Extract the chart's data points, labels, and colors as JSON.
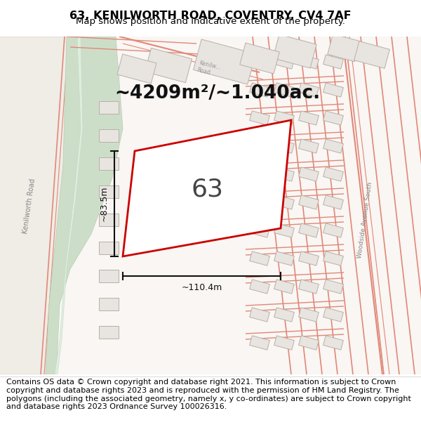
{
  "title_line1": "63, KENILWORTH ROAD, COVENTRY, CV4 7AF",
  "title_line2": "Map shows position and indicative extent of the property.",
  "footer_text": "Contains OS data © Crown copyright and database right 2021. This information is subject to Crown copyright and database rights 2023 and is reproduced with the permission of HM Land Registry. The polygons (including the associated geometry, namely x, y co-ordinates) are subject to Crown copyright and database rights 2023 Ordnance Survey 100026316.",
  "area_text": "~4209m²/~1.040ac.",
  "label_63": "63",
  "dim_width": "~110.4m",
  "dim_height": "~83.5m",
  "map_bg": "#f8f5f2",
  "green_color": "#cddec8",
  "green_edge": "#b8ccb2",
  "road_pink": "#f5c0b8",
  "road_edge": "#e08878",
  "building_face": "#e8e4e0",
  "building_edge": "#b8b0a8",
  "plot_edge": "#cc0000",
  "dim_color": "#111111",
  "road_label_color": "#888888",
  "title_fontsize": 11.5,
  "subtitle_fontsize": 9.5,
  "area_fontsize": 19,
  "label_fontsize": 26,
  "footer_fontsize": 8.0
}
